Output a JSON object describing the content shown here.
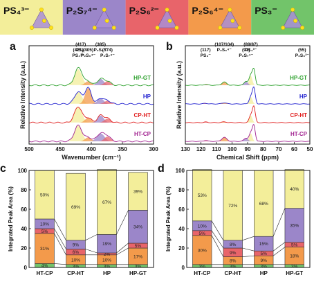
{
  "banner": [
    {
      "label": "PS₄³⁻",
      "color": "#f3ee9a"
    },
    {
      "label": "P₂S₇⁴⁻",
      "color": "#9b86c9"
    },
    {
      "label": "P₂S₆²⁻",
      "color": "#e8646a"
    },
    {
      "label": "P₂S₆⁴⁻",
      "color": "#f39a4b"
    },
    {
      "label": "PS₃⁻",
      "color": "#72c46a"
    }
  ],
  "panel_letters": {
    "a": "a",
    "b": "b",
    "c": "c",
    "d": "d"
  },
  "chart_data": [
    {
      "panel": "a",
      "type": "line",
      "xlabel": "Wavenumber (cm⁻¹)",
      "ylabel": "Relative Intensity (a.u.)",
      "xlim": [
        500,
        300
      ],
      "xticks": [
        500,
        450,
        400,
        350,
        300
      ],
      "annotations": [
        {
          "pos": "(421)",
          "species": "PS₄³⁻",
          "x": 421
        },
        {
          "pos": "(417)",
          "species": "PS₃⁻",
          "x": 417
        },
        {
          "pos": "(405)",
          "species": "P₂S₆⁴⁻",
          "x": 405
        },
        {
          "pos": "(385)",
          "species": "P₂S₆²⁻",
          "x": 385
        },
        {
          "pos": "(374)",
          "species": "P₂S₇⁴⁻",
          "x": 374
        }
      ],
      "series": [
        {
          "name": "HP-GT",
          "color": "#2ca02c"
        },
        {
          "name": "HP",
          "color": "#1f1fcf"
        },
        {
          "name": "CP-HT",
          "color": "#e01f1f"
        },
        {
          "name": "HT-CP",
          "color": "#a0208f"
        }
      ]
    },
    {
      "panel": "b",
      "type": "line",
      "xlabel": "Chemical Shift (ppm)",
      "ylabel": "Relative Intensity (a.u.)",
      "xlim": [
        130,
        50
      ],
      "xticks": [
        130,
        120,
        110,
        100,
        90,
        80,
        70,
        60,
        50
      ],
      "annotations": [
        {
          "pos": "(117)",
          "species": "PS₃⁻",
          "x": 117
        },
        {
          "pos": "(107/104)",
          "species": "P₂S₆⁴⁻",
          "x": 105
        },
        {
          "pos": "(91)",
          "species": "P₂S₇⁴⁻",
          "x": 91
        },
        {
          "pos": "(89/87)",
          "species": "PS₄³⁻",
          "x": 88
        },
        {
          "pos": "(55)",
          "species": "P₂S₆²⁻",
          "x": 55
        }
      ],
      "series": [
        {
          "name": "HP-GT",
          "color": "#2ca02c"
        },
        {
          "name": "HP",
          "color": "#1f1fcf"
        },
        {
          "name": "CP-HT",
          "color": "#e01f1f"
        },
        {
          "name": "HT-CP",
          "color": "#a0208f"
        }
      ]
    },
    {
      "panel": "c",
      "type": "bar",
      "stacked": true,
      "ylabel": "Integrated Peak Area (%)",
      "ylim": [
        0,
        100
      ],
      "yticks": [
        0,
        20,
        40,
        60,
        80,
        100
      ],
      "categories": [
        "HT-CP",
        "CP-HT",
        "HP",
        "HP-GT"
      ],
      "series": [
        {
          "color": "#72c46a",
          "values": [
            4,
            3,
            3,
            3
          ]
        },
        {
          "color": "#f39a4b",
          "values": [
            31,
            10,
            10,
            17
          ]
        },
        {
          "color": "#e8646a",
          "values": [
            5,
            6,
            2,
            5
          ]
        },
        {
          "color": "#9b86c9",
          "values": [
            10,
            9,
            19,
            34
          ]
        },
        {
          "color": "#f3ee9a",
          "values": [
            50,
            69,
            67,
            39
          ]
        }
      ],
      "labels": [
        [
          "4%",
          "31%",
          "5%",
          "10%",
          "50%"
        ],
        [
          "3%",
          "10%",
          "6%",
          "9%",
          "69%"
        ],
        [
          "3%",
          "10%",
          "2%",
          "19%",
          "67%"
        ],
        [
          "3%",
          "17%",
          "5%",
          "34%",
          "39%"
        ]
      ]
    },
    {
      "panel": "d",
      "type": "bar",
      "stacked": true,
      "ylabel": "Integrated Peak Area (%)",
      "ylim": [
        0,
        100
      ],
      "yticks": [
        0,
        20,
        40,
        60,
        80,
        100
      ],
      "categories": [
        "HT-CP",
        "CP-HT",
        "HP",
        "HP-GT"
      ],
      "series": [
        {
          "color": "#72c46a",
          "values": [
            3,
            3,
            3,
            3
          ]
        },
        {
          "color": "#f39a4b",
          "values": [
            30,
            8,
            9,
            18
          ]
        },
        {
          "color": "#e8646a",
          "values": [
            5,
            9,
            5,
            5
          ]
        },
        {
          "color": "#9b86c9",
          "values": [
            10,
            8,
            15,
            35
          ]
        },
        {
          "color": "#f3ee9a",
          "values": [
            53,
            72,
            68,
            40
          ]
        }
      ],
      "labels": [
        [
          "3%",
          "30%",
          "5%",
          "10%",
          "53%"
        ],
        [
          "3%",
          "8%",
          "9%",
          "8%",
          "72%"
        ],
        [
          "3%",
          "9%",
          "5%",
          "15%",
          "68%"
        ],
        [
          "3%",
          "18%",
          "5%",
          "35%",
          "40%"
        ]
      ]
    }
  ]
}
